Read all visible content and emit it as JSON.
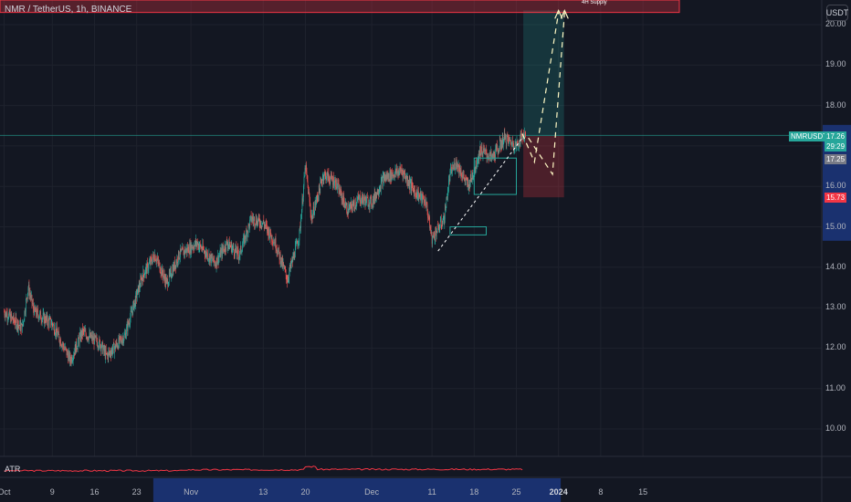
{
  "header": {
    "symbol_title": "NMR / TetherUS, 1h, BINANCE",
    "currency_button": "USDT"
  },
  "price_axis": {
    "labels": [
      "20.00",
      "19.00",
      "18.00",
      "17.00",
      "16.00",
      "15.00",
      "14.00",
      "13.00",
      "12.00",
      "11.00",
      "10.00"
    ]
  },
  "time_axis": {
    "labels": [
      {
        "text": "Oct",
        "bold": false
      },
      {
        "text": "9",
        "bold": false
      },
      {
        "text": "16",
        "bold": false
      },
      {
        "text": "23",
        "bold": false
      },
      {
        "text": "Nov",
        "bold": false
      },
      {
        "text": "13",
        "bold": false
      },
      {
        "text": "20",
        "bold": false
      },
      {
        "text": "Dec",
        "bold": false
      },
      {
        "text": "11",
        "bold": false
      },
      {
        "text": "18",
        "bold": false
      },
      {
        "text": "25",
        "bold": false
      },
      {
        "text": "2024",
        "bold": true
      },
      {
        "text": "8",
        "bold": false
      },
      {
        "text": "15",
        "bold": false
      }
    ]
  },
  "annotations": {
    "supply_zone_label": "4H Supply"
  },
  "indicator": {
    "name": "ATR",
    "color": "#f23645"
  },
  "price_tags": {
    "symbol_tag": "NMRUSDT",
    "last_price": "17.26",
    "countdown": "29:29",
    "entry_price": "17.25",
    "stop_price": "15.73"
  },
  "colors": {
    "up": "#26a69a",
    "down": "#ef5350",
    "background": "#131722",
    "grid": "#1e222d",
    "profit_zone": "#26a69a",
    "loss_zone": "#f23645",
    "supply_zone": "#f23645",
    "time_highlight": "#2962ff"
  },
  "chart_data": {
    "type": "candlestick",
    "ylim": [
      9.5,
      20.4
    ],
    "y_scale": "linear",
    "last_price": 17.26,
    "anchors": [
      {
        "x": "Oct 1",
        "price": 12.9
      },
      {
        "x": "Oct 4",
        "price": 12.5
      },
      {
        "x": "Oct 5",
        "price": 13.5
      },
      {
        "x": "Oct 6",
        "price": 12.9
      },
      {
        "x": "Oct 9",
        "price": 12.6
      },
      {
        "x": "Oct 12",
        "price": 11.7
      },
      {
        "x": "Oct 14",
        "price": 12.4
      },
      {
        "x": "Oct 17",
        "price": 12.1
      },
      {
        "x": "Oct 18",
        "price": 11.8
      },
      {
        "x": "Oct 21",
        "price": 12.3
      },
      {
        "x": "Oct 24",
        "price": 13.8
      },
      {
        "x": "Oct 26",
        "price": 14.3
      },
      {
        "x": "Oct 28",
        "price": 13.6
      },
      {
        "x": "Oct 30",
        "price": 14.3
      },
      {
        "x": "Nov 2",
        "price": 14.6
      },
      {
        "x": "Nov 5",
        "price": 14.1
      },
      {
        "x": "Nov 7",
        "price": 14.6
      },
      {
        "x": "Nov 9",
        "price": 14.3
      },
      {
        "x": "Nov 11",
        "price": 15.2
      },
      {
        "x": "Nov 13",
        "price": 15.1
      },
      {
        "x": "Nov 15",
        "price": 14.6
      },
      {
        "x": "Nov 17",
        "price": 13.7
      },
      {
        "x": "Nov 19",
        "price": 14.8
      },
      {
        "x": "Nov 20",
        "price": 16.5
      },
      {
        "x": "Nov 21",
        "price": 15.2
      },
      {
        "x": "Nov 23",
        "price": 16.3
      },
      {
        "x": "Nov 25",
        "price": 16.1
      },
      {
        "x": "Nov 27",
        "price": 15.4
      },
      {
        "x": "Nov 29",
        "price": 15.7
      },
      {
        "x": "Dec 1",
        "price": 15.6
      },
      {
        "x": "Dec 3",
        "price": 16.2
      },
      {
        "x": "Dec 6",
        "price": 16.4
      },
      {
        "x": "Dec 8",
        "price": 15.9
      },
      {
        "x": "Dec 10",
        "price": 15.6
      },
      {
        "x": "Dec 11",
        "price": 14.7
      },
      {
        "x": "Dec 13",
        "price": 15.2
      },
      {
        "x": "Dec 14",
        "price": 16.3
      },
      {
        "x": "Dec 15",
        "price": 16.6
      },
      {
        "x": "Dec 17",
        "price": 16.0
      },
      {
        "x": "Dec 18",
        "price": 16.4
      },
      {
        "x": "Dec 19",
        "price": 16.9
      },
      {
        "x": "Dec 21",
        "price": 16.7
      },
      {
        "x": "Dec 23",
        "price": 17.2
      },
      {
        "x": "Dec 25",
        "price": 17.0
      },
      {
        "x": "Dec 26",
        "price": 17.26
      }
    ],
    "atr": "low and flat in October, rising through November, spike near Nov 20, moderate in December",
    "drawings": {
      "supply_zone": {
        "label": "4H Supply",
        "from_price": 20.4,
        "to_price": 20.25
      },
      "long_position": {
        "entry": 17.25,
        "target": 20.35,
        "stop": 15.73
      },
      "trendline": {
        "from": {
          "x": "Dec 12",
          "price": 14.4
        },
        "to": {
          "x": "Dec 26",
          "price": 17.2
        }
      },
      "boxes": [
        {
          "x_from": "Dec 14",
          "x_to": "Dec 20",
          "top": 15.0,
          "bottom": 14.8
        },
        {
          "x_from": "Dec 18",
          "x_to": "Dec 25",
          "top": 16.7,
          "bottom": 15.8
        }
      ],
      "projection_paths": [
        {
          "points": [
            {
              "x": "Dec 26",
              "price": 17.3
            },
            {
              "x": "Dec 28",
              "price": 16.6
            },
            {
              "x": "Jan 1",
              "price": 20.3
            }
          ]
        },
        {
          "points": [
            {
              "x": "Dec 27",
              "price": 17.2
            },
            {
              "x": "Dec 31",
              "price": 16.3
            },
            {
              "x": "Jan 2",
              "price": 20.3
            }
          ]
        }
      ]
    }
  }
}
